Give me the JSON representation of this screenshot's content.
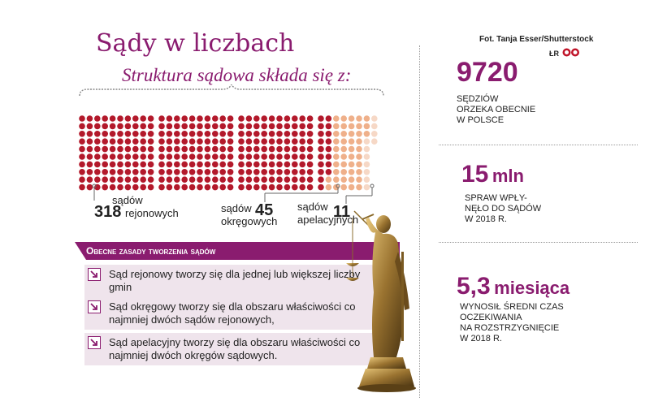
{
  "title": "Sądy w liczbach",
  "subtitle": "Struktura sądowa składa się z:",
  "credit": "Fot. Tanja Esser/Shutterstock",
  "credit_logo": "ŁR",
  "colors": {
    "accent": "#8a1c6f",
    "dot_dark": "#b3192b",
    "dot_light": "#efb08a",
    "box_bg": "#efe4ec"
  },
  "courts": [
    {
      "count": "318",
      "label_line1": "sądów",
      "label_line2": "rejonowych"
    },
    {
      "count": "45",
      "label_line1": "sądów",
      "label_line2": "okręgowych"
    },
    {
      "count": "11",
      "label_line1": "sądów",
      "label_line2": "apelacyjnych"
    }
  ],
  "rules_header": "Obecne zasady tworzenia sądów",
  "rules": [
    "Sąd rejonowy tworzy się dla jednej lub większej liczby gmin",
    "Sąd okręgowy tworzy się dla obszaru właściwości co najmniej dwóch sądów rejonowych,",
    "Sąd apelacyjny tworzy się dla obszaru właściwości co najmniej dwóch okręgów sądowych."
  ],
  "stats": [
    {
      "value": "9720",
      "unit": "",
      "caption": "sędziów\norzeka obecnie\nw Polsce"
    },
    {
      "value": "15",
      "unit": "mln",
      "caption": "spraw wpły-\nnęło do sądów\nw 2018 r."
    },
    {
      "value": "5,3",
      "unit": "miesiąca",
      "caption": "wynosił średni czas\noczekiwania\nna rozstrzygnięcie\nw 2018 r."
    }
  ],
  "statue_icon": "lady-justice-statue"
}
